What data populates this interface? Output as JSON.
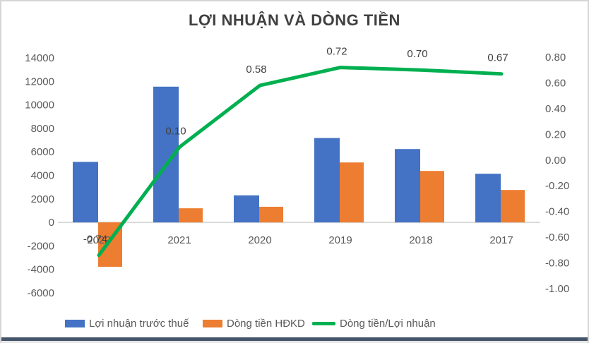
{
  "title": "LỢI NHUẬN VÀ DÒNG TIỀN",
  "colors": {
    "profit_bar": "#4472C4",
    "cashflow_bar": "#ED7D31",
    "ratio_line": "#00B050",
    "title_text": "#404040",
    "axis_text": "#595959",
    "label_text": "#404040",
    "zero_line": "#D9D9D9",
    "frame_border": "#D6D6D6",
    "bottom_border": "#44546A"
  },
  "chart_data": {
    "type": "combo",
    "title": "LỢI NHUẬN VÀ DÒNG TIỀN",
    "categories": [
      "2022",
      "2021",
      "2020",
      "2019",
      "2018",
      "2017"
    ],
    "series": [
      {
        "name": "Lợi nhuận trước thuế",
        "type": "bar",
        "axis": "left",
        "color": "#4472C4",
        "values": [
          5150,
          11550,
          2300,
          7180,
          6240,
          4140
        ]
      },
      {
        "name": "Dòng tiền HĐKD",
        "type": "bar",
        "axis": "left",
        "color": "#ED7D31",
        "values": [
          -3780,
          1200,
          1330,
          5100,
          4380,
          2760
        ]
      },
      {
        "name": "Dòng tiền/Lợi nhuận",
        "type": "line",
        "axis": "right",
        "color": "#00B050",
        "values": [
          -0.74,
          0.1,
          0.58,
          0.72,
          0.7,
          0.67
        ],
        "labels": [
          "-0.74",
          "0.10",
          "0.58",
          "0.72",
          "0.70",
          "0.67"
        ]
      }
    ],
    "left_axis": {
      "min": -6000,
      "max": 14000,
      "step": 2000,
      "ticks": [
        "14000",
        "12000",
        "10000",
        "8000",
        "6000",
        "4000",
        "2000",
        "0",
        "-2000",
        "-4000",
        "-6000"
      ]
    },
    "right_axis": {
      "min": -1.0,
      "max": 0.8,
      "step": 0.2,
      "ticks": [
        "0.80",
        "0.60",
        "0.40",
        "0.20",
        "0.00",
        "-0.20",
        "-0.40",
        "-0.60",
        "-0.80",
        "-1.00"
      ]
    },
    "grid": false,
    "legend_position": "bottom"
  }
}
